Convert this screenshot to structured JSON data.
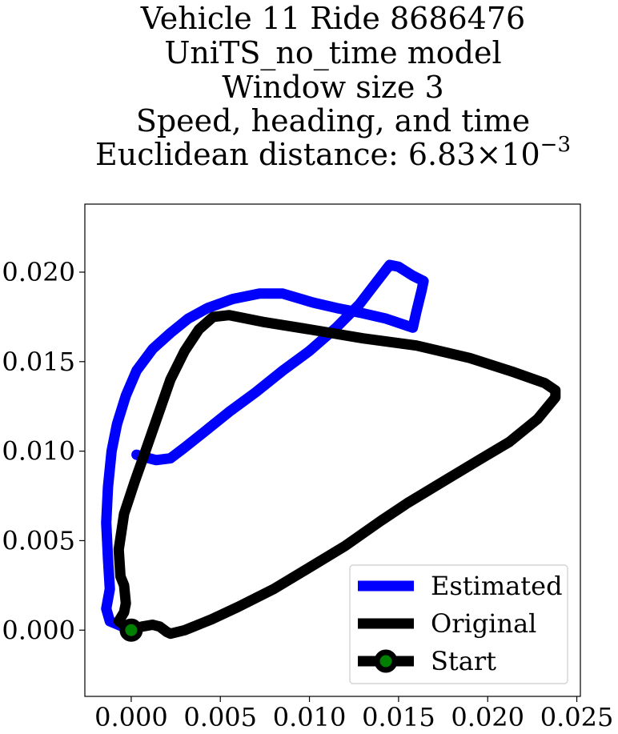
{
  "chart_data": {
    "type": "line",
    "title_lines": [
      "Vehicle 11 Ride 8686476",
      "UniTS_no_time model",
      "Window size 3",
      "Speed, heading, and time"
    ],
    "title_distance": {
      "prefix": "Euclidean distance: ",
      "mantissa": "6.83",
      "times": "×",
      "base": "10",
      "exponent": "−3"
    },
    "xlabel": "",
    "ylabel": "",
    "xlim": [
      -0.0026,
      0.0252
    ],
    "ylim": [
      -0.0037,
      0.0238
    ],
    "x_ticks": [
      {
        "value": 0.0,
        "label": "0.000"
      },
      {
        "value": 0.005,
        "label": "0.005"
      },
      {
        "value": 0.01,
        "label": "0.010"
      },
      {
        "value": 0.015,
        "label": "0.015"
      },
      {
        "value": 0.02,
        "label": "0.020"
      },
      {
        "value": 0.025,
        "label": "0.025"
      }
    ],
    "y_ticks": [
      {
        "value": 0.0,
        "label": "0.000"
      },
      {
        "value": 0.005,
        "label": "0.005"
      },
      {
        "value": 0.01,
        "label": "0.010"
      },
      {
        "value": 0.015,
        "label": "0.015"
      },
      {
        "value": 0.02,
        "label": "0.020"
      }
    ],
    "grid": false,
    "legend_position": "bottom-right",
    "series": [
      {
        "name": "Estimated",
        "color": "#0000ff",
        "points": [
          [
            0.0,
            0.0
          ],
          [
            -0.0012,
            0.0005
          ],
          [
            -0.0014,
            0.0012
          ],
          [
            -0.0012,
            0.0023
          ],
          [
            -0.0013,
            0.004
          ],
          [
            -0.0014,
            0.006
          ],
          [
            -0.0013,
            0.008
          ],
          [
            -0.0011,
            0.01
          ],
          [
            -0.0008,
            0.0115
          ],
          [
            -0.0003,
            0.0131
          ],
          [
            0.0003,
            0.0145
          ],
          [
            0.0012,
            0.0157
          ],
          [
            0.0022,
            0.0166
          ],
          [
            0.0032,
            0.0174
          ],
          [
            0.0043,
            0.018
          ],
          [
            0.0057,
            0.0185
          ],
          [
            0.0072,
            0.0188
          ],
          [
            0.0085,
            0.0188
          ],
          [
            0.0102,
            0.0183
          ],
          [
            0.0115,
            0.018
          ],
          [
            0.013,
            0.0177
          ],
          [
            0.0143,
            0.0174
          ],
          [
            0.0155,
            0.017
          ],
          [
            0.0158,
            0.0169
          ],
          [
            0.016,
            0.0178
          ],
          [
            0.0163,
            0.019
          ],
          [
            0.0164,
            0.0195
          ],
          [
            0.0158,
            0.0198
          ],
          [
            0.015,
            0.0203
          ],
          [
            0.0145,
            0.0204
          ],
          [
            0.0138,
            0.0195
          ],
          [
            0.0128,
            0.0182
          ],
          [
            0.0115,
            0.0169
          ],
          [
            0.01,
            0.0156
          ],
          [
            0.0085,
            0.0145
          ],
          [
            0.007,
            0.0133
          ],
          [
            0.0055,
            0.0122
          ],
          [
            0.004,
            0.011
          ],
          [
            0.003,
            0.0102
          ],
          [
            0.0022,
            0.0096
          ],
          [
            0.0014,
            0.0095
          ],
          [
            0.0006,
            0.0097
          ],
          [
            0.0003,
            0.0098
          ]
        ]
      },
      {
        "name": "Original",
        "color": "#000000",
        "points": [
          [
            0.0,
            0.0
          ],
          [
            -0.0007,
            0.0005
          ],
          [
            -0.0004,
            0.001
          ],
          [
            -0.0003,
            0.0015
          ],
          [
            -0.0004,
            0.0025
          ],
          [
            -0.0006,
            0.003
          ],
          [
            -0.0007,
            0.0045
          ],
          [
            -0.0004,
            0.0065
          ],
          [
            0.0002,
            0.0083
          ],
          [
            0.0008,
            0.01
          ],
          [
            0.0015,
            0.012
          ],
          [
            0.0022,
            0.014
          ],
          [
            0.003,
            0.0156
          ],
          [
            0.0038,
            0.0168
          ],
          [
            0.0046,
            0.0175
          ],
          [
            0.0055,
            0.0176
          ],
          [
            0.0075,
            0.0172
          ],
          [
            0.01,
            0.0168
          ],
          [
            0.013,
            0.0163
          ],
          [
            0.016,
            0.0159
          ],
          [
            0.019,
            0.0152
          ],
          [
            0.0215,
            0.0144
          ],
          [
            0.0232,
            0.0138
          ],
          [
            0.0238,
            0.0134
          ],
          [
            0.0238,
            0.013
          ],
          [
            0.0228,
            0.0118
          ],
          [
            0.0212,
            0.0105
          ],
          [
            0.0195,
            0.0095
          ],
          [
            0.0175,
            0.0083
          ],
          [
            0.0155,
            0.0071
          ],
          [
            0.014,
            0.0061
          ],
          [
            0.012,
            0.0047
          ],
          [
            0.01,
            0.0035
          ],
          [
            0.008,
            0.0023
          ],
          [
            0.006,
            0.0013
          ],
          [
            0.0045,
            0.0006
          ],
          [
            0.003,
            0.0
          ],
          [
            0.0022,
            -0.0002
          ],
          [
            0.002,
            -0.0001
          ],
          [
            0.0016,
            0.0002
          ],
          [
            0.0012,
            0.0003
          ],
          [
            0.0006,
            0.0002
          ],
          [
            0.0,
            0.0
          ]
        ]
      }
    ],
    "markers": [
      {
        "name": "Start",
        "x": 0.0,
        "y": 0.0,
        "edge_color": "#000000",
        "face_color": "#008000"
      }
    ],
    "legend": [
      {
        "label": "Estimated",
        "style": "line",
        "color": "#0000ff"
      },
      {
        "label": "Original",
        "style": "line",
        "color": "#000000"
      },
      {
        "label": "Start",
        "style": "line-marker",
        "color": "#000000",
        "marker_face": "#008000"
      }
    ]
  }
}
